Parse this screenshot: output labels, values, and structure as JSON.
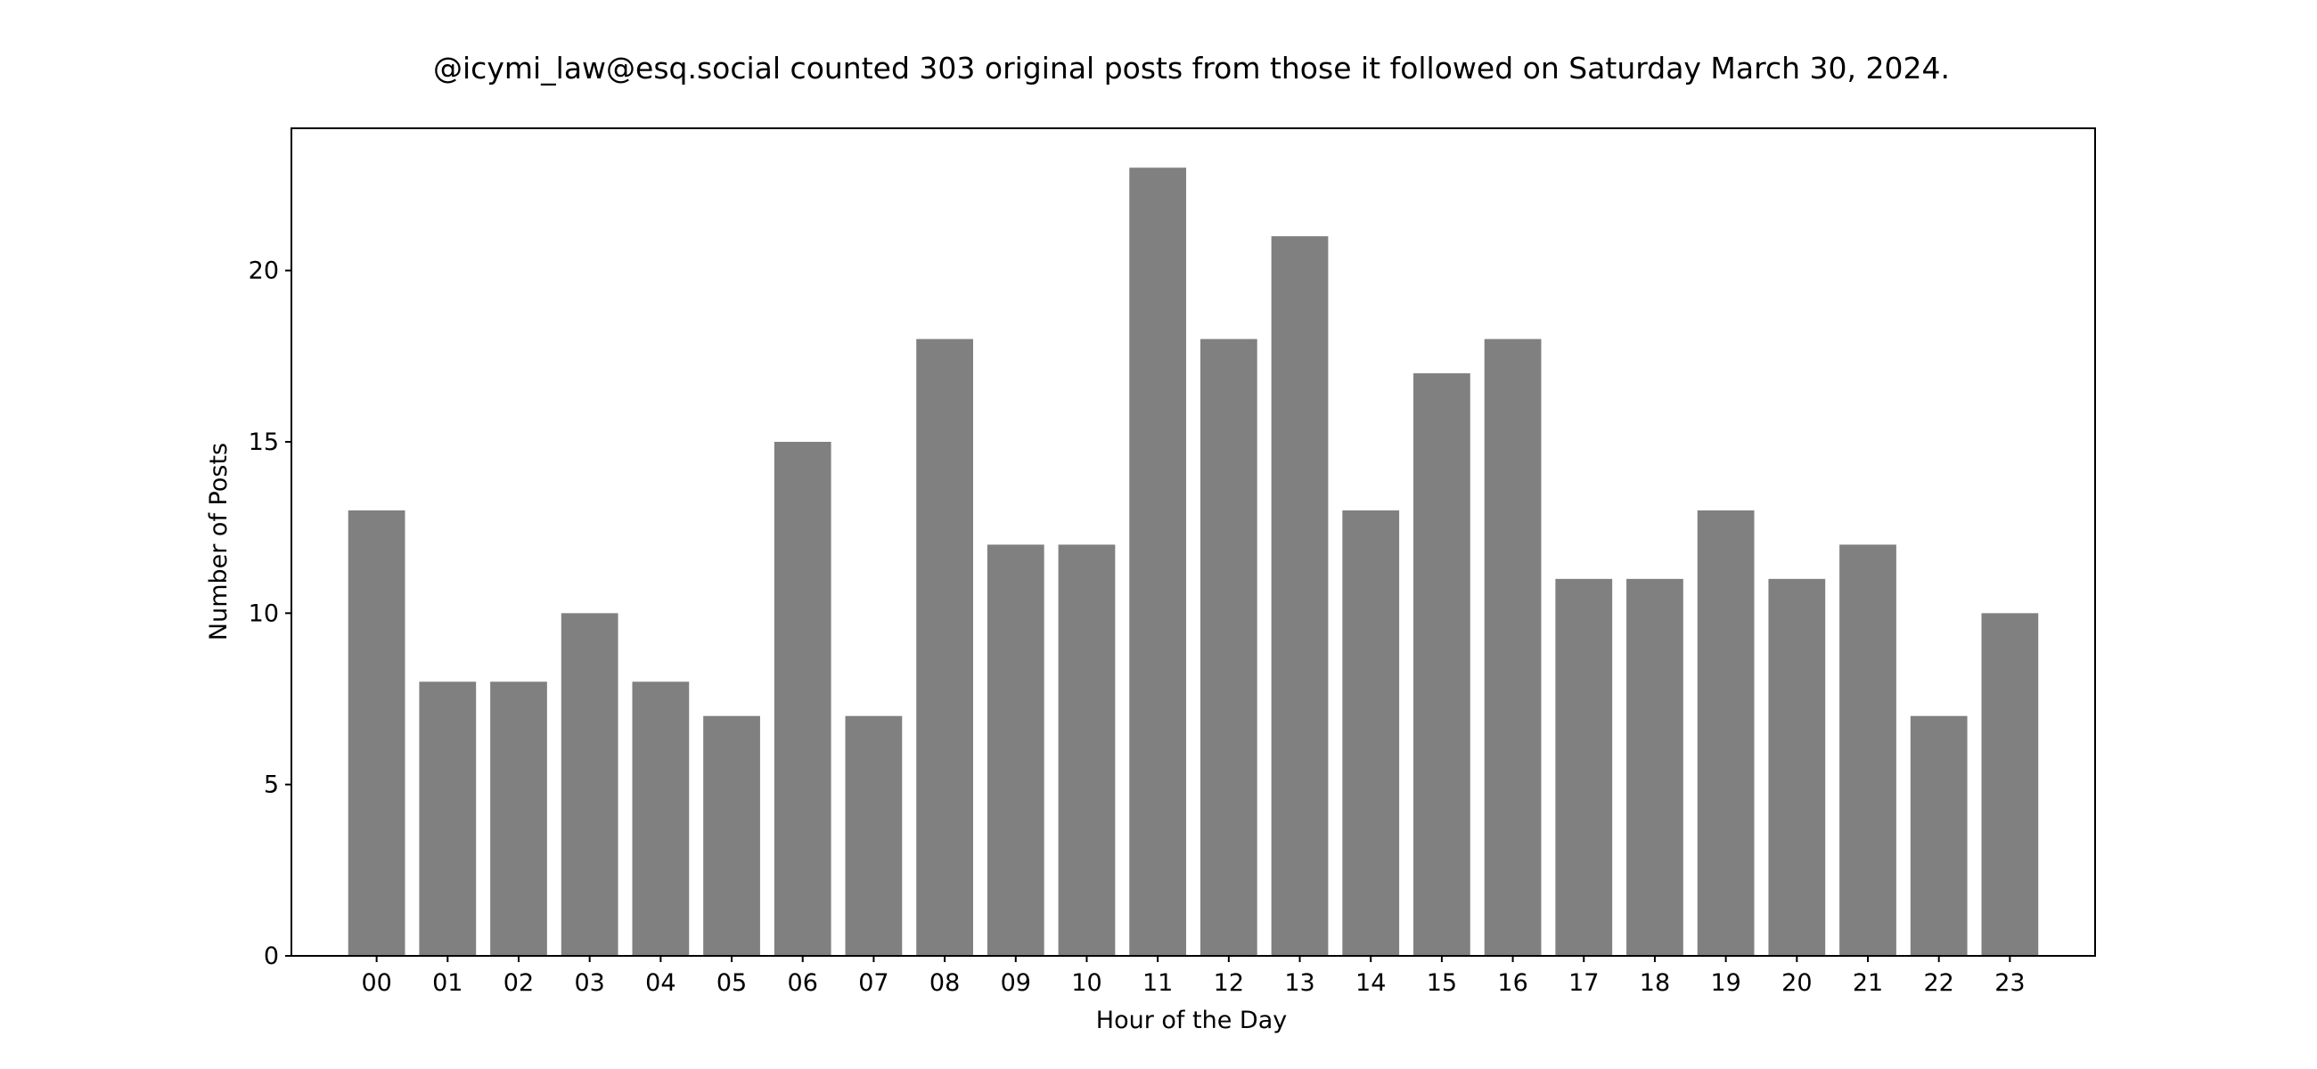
{
  "chart_data": {
    "type": "bar",
    "title": "@icymi_law@esq.social counted 303 original posts from those it followed on Saturday March 30, 2024.",
    "xlabel": "Hour of the Day",
    "ylabel": "Number of Posts",
    "categories": [
      "00",
      "01",
      "02",
      "03",
      "04",
      "05",
      "06",
      "07",
      "08",
      "09",
      "10",
      "11",
      "12",
      "13",
      "14",
      "15",
      "16",
      "17",
      "18",
      "19",
      "20",
      "21",
      "22",
      "23"
    ],
    "values": [
      13,
      8,
      8,
      10,
      8,
      7,
      15,
      7,
      18,
      12,
      12,
      23,
      18,
      21,
      13,
      17,
      18,
      11,
      11,
      13,
      11,
      12,
      7,
      10
    ],
    "ylim": [
      0,
      24.15
    ],
    "yticks": [
      0,
      5,
      10,
      15,
      20
    ],
    "grid": false,
    "bar_color": "#808080"
  }
}
